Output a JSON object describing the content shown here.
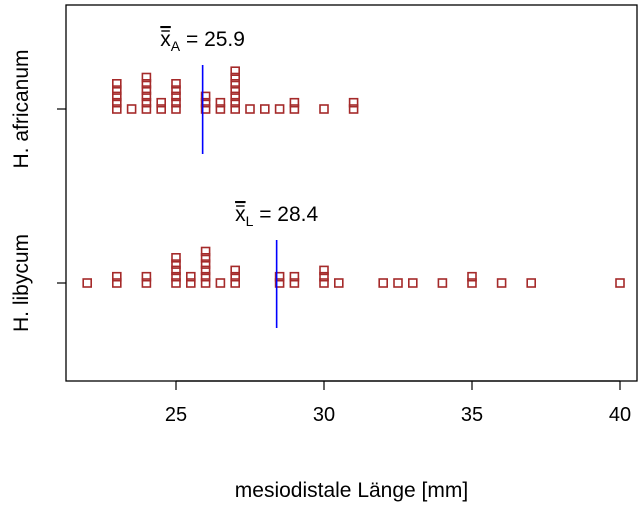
{
  "chart_data": {
    "type": "scatter",
    "subtype": "stacked dot plot (stripchart, method=stack)",
    "title": "",
    "xlabel": "mesiodistale Länge [mm]",
    "ylabel": "",
    "xlim": [
      21.5,
      41.5
    ],
    "xticks": [
      25,
      30,
      35,
      40
    ],
    "grid": false,
    "legend": "none",
    "marker_color": "#a52a2a",
    "mean_line_color": "#0000ff",
    "series": [
      {
        "name": "H. africanum",
        "stacks": [
          {
            "x": 23.0,
            "count": 5
          },
          {
            "x": 23.5,
            "count": 1
          },
          {
            "x": 24.0,
            "count": 6
          },
          {
            "x": 24.5,
            "count": 2
          },
          {
            "x": 25.0,
            "count": 5
          },
          {
            "x": 26.0,
            "count": 3
          },
          {
            "x": 26.5,
            "count": 2
          },
          {
            "x": 27.0,
            "count": 7
          },
          {
            "x": 27.5,
            "count": 1
          },
          {
            "x": 28.0,
            "count": 1
          },
          {
            "x": 28.5,
            "count": 1
          },
          {
            "x": 29.0,
            "count": 2
          },
          {
            "x": 30.0,
            "count": 1
          },
          {
            "x": 31.0,
            "count": 2
          }
        ],
        "mean": 25.9,
        "mean_label_base": "x",
        "mean_label_sub": "A",
        "mean_label_rest": " = 25.9"
      },
      {
        "name": "H. libycum",
        "stacks": [
          {
            "x": 22.0,
            "count": 1
          },
          {
            "x": 23.0,
            "count": 2
          },
          {
            "x": 24.0,
            "count": 2
          },
          {
            "x": 25.0,
            "count": 5
          },
          {
            "x": 25.5,
            "count": 2
          },
          {
            "x": 26.0,
            "count": 6
          },
          {
            "x": 26.5,
            "count": 1
          },
          {
            "x": 27.0,
            "count": 3
          },
          {
            "x": 28.5,
            "count": 2
          },
          {
            "x": 29.0,
            "count": 2
          },
          {
            "x": 30.0,
            "count": 3
          },
          {
            "x": 30.5,
            "count": 1
          },
          {
            "x": 32.0,
            "count": 1
          },
          {
            "x": 32.5,
            "count": 1
          },
          {
            "x": 33.0,
            "count": 1
          },
          {
            "x": 34.0,
            "count": 1
          },
          {
            "x": 35.0,
            "count": 2
          },
          {
            "x": 36.0,
            "count": 1
          },
          {
            "x": 37.0,
            "count": 1
          },
          {
            "x": 40.0,
            "count": 1
          }
        ],
        "mean": 28.4,
        "mean_label_base": "x",
        "mean_label_sub": "L",
        "mean_label_rest": " = 28.4"
      }
    ]
  }
}
